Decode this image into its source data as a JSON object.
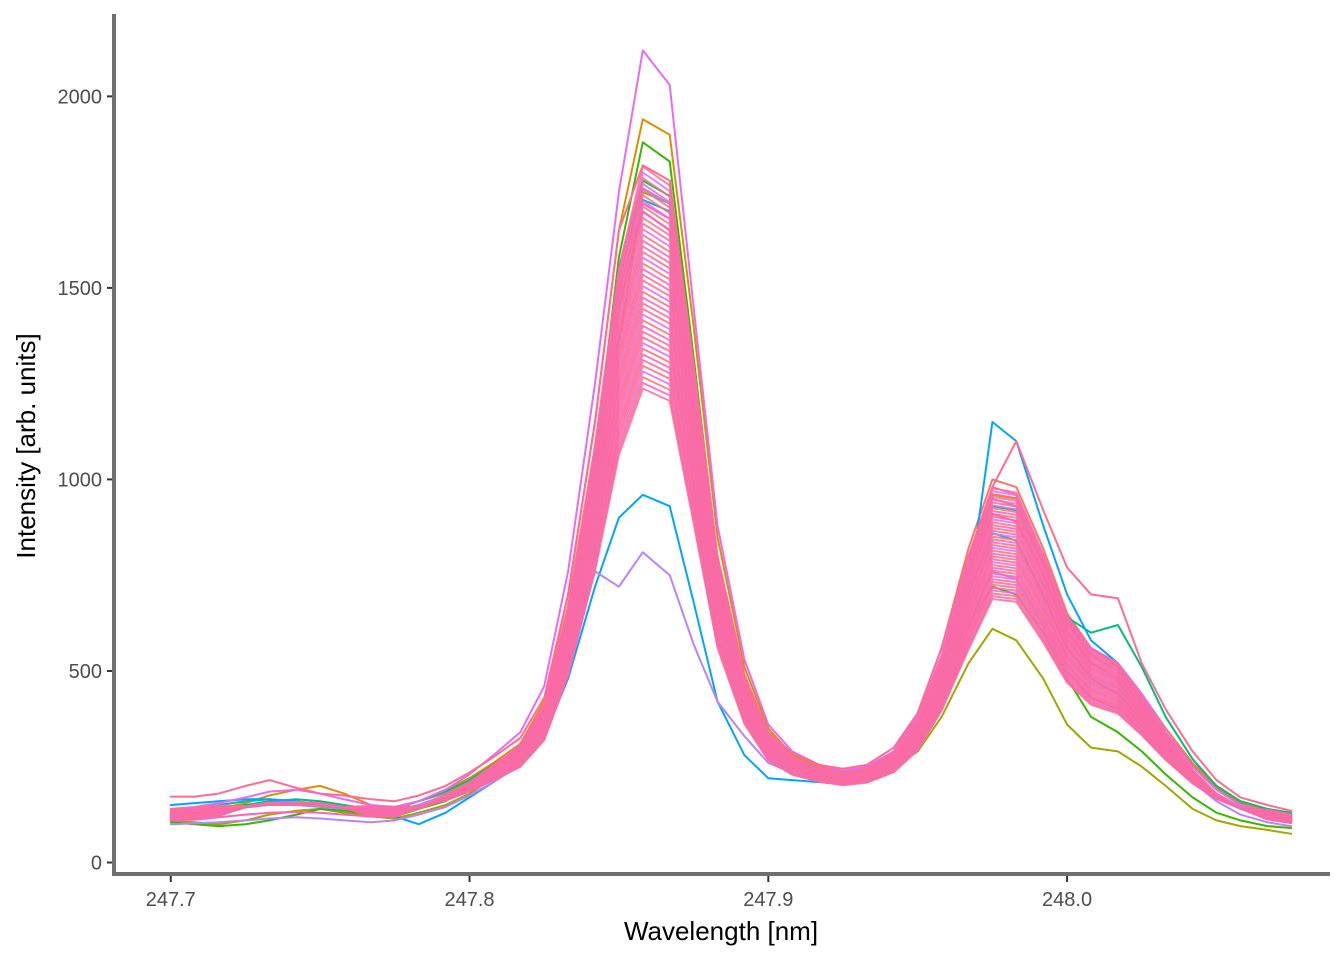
{
  "chart_data": {
    "type": "line",
    "title": "",
    "xlabel": "Wavelength [nm]",
    "ylabel": "Intensity [arb. units]",
    "xlim": [
      247.681,
      248.088
    ],
    "ylim": [
      -30,
      2215
    ],
    "grid": false,
    "legend": "none",
    "x_ticks": [
      {
        "value": 247.7,
        "label": "247.7"
      },
      {
        "value": 247.8,
        "label": "247.8"
      },
      {
        "value": 247.9,
        "label": "247.9"
      },
      {
        "value": 248.0,
        "label": "248.0"
      }
    ],
    "y_ticks": [
      {
        "value": 0,
        "label": "0"
      },
      {
        "value": 500,
        "label": "500"
      },
      {
        "value": 1000,
        "label": "1000"
      },
      {
        "value": 1500,
        "label": "1500"
      },
      {
        "value": 2000,
        "label": "2000"
      }
    ],
    "x": [
      247.7,
      247.708,
      247.716,
      247.725,
      247.733,
      247.742,
      247.75,
      247.758,
      247.767,
      247.775,
      247.783,
      247.792,
      247.8,
      247.808,
      247.817,
      247.825,
      247.833,
      247.842,
      247.85,
      247.858,
      247.867,
      247.875,
      247.883,
      247.892,
      247.9,
      247.908,
      247.917,
      247.925,
      247.933,
      247.942,
      247.95,
      247.958,
      247.967,
      247.975,
      247.983,
      247.992,
      248.0,
      248.008,
      248.017,
      248.025,
      248.033,
      248.042,
      248.05,
      248.058,
      248.067,
      248.075
    ],
    "series": [
      {
        "color": "#F8766D",
        "values": [
          130,
          132,
          150,
          160,
          165,
          160,
          150,
          140,
          130,
          140,
          160,
          180,
          210,
          250,
          300,
          400,
          650,
          1000,
          1450,
          1700,
          1650,
          1200,
          750,
          480,
          340,
          280,
          250,
          240,
          250,
          290,
          390,
          560,
          820,
          1000,
          980,
          820,
          650,
          560,
          520,
          440,
          350,
          260,
          200,
          160,
          140,
          130
        ]
      },
      {
        "color": "#D89000",
        "values": [
          125,
          130,
          140,
          155,
          175,
          190,
          200,
          180,
          150,
          140,
          160,
          190,
          220,
          260,
          310,
          420,
          700,
          1150,
          1650,
          1940,
          1900,
          1400,
          850,
          510,
          350,
          280,
          250,
          235,
          245,
          290,
          380,
          540,
          780,
          960,
          950,
          800,
          640,
          560,
          510,
          430,
          340,
          255,
          195,
          155,
          140,
          125
        ]
      },
      {
        "color": "#A3A500",
        "values": [
          110,
          105,
          100,
          110,
          125,
          135,
          140,
          130,
          120,
          115,
          130,
          150,
          180,
          220,
          260,
          350,
          560,
          900,
          1350,
          1750,
          1720,
          1250,
          780,
          470,
          330,
          270,
          240,
          225,
          230,
          250,
          290,
          380,
          520,
          610,
          580,
          480,
          360,
          300,
          290,
          250,
          200,
          140,
          110,
          95,
          85,
          75
        ]
      },
      {
        "color": "#39B600",
        "values": [
          105,
          100,
          95,
          100,
          110,
          125,
          140,
          135,
          125,
          120,
          140,
          160,
          200,
          240,
          290,
          390,
          620,
          1050,
          1580,
          1880,
          1830,
          1320,
          790,
          480,
          330,
          270,
          240,
          220,
          225,
          260,
          320,
          430,
          620,
          720,
          700,
          600,
          480,
          380,
          340,
          290,
          230,
          170,
          130,
          110,
          95,
          90
        ]
      },
      {
        "color": "#00BF7D",
        "values": [
          120,
          125,
          135,
          150,
          160,
          165,
          160,
          150,
          140,
          145,
          160,
          185,
          215,
          255,
          300,
          400,
          640,
          1050,
          1550,
          1780,
          1740,
          1260,
          760,
          460,
          320,
          265,
          240,
          230,
          240,
          280,
          370,
          520,
          760,
          930,
          920,
          780,
          640,
          600,
          620,
          510,
          380,
          270,
          200,
          160,
          140,
          130
        ]
      },
      {
        "color": "#00BFC4",
        "values": [
          135,
          140,
          150,
          160,
          165,
          160,
          150,
          145,
          140,
          135,
          150,
          175,
          205,
          245,
          290,
          380,
          600,
          980,
          1480,
          1730,
          1700,
          1230,
          740,
          440,
          300,
          250,
          225,
          210,
          220,
          260,
          340,
          480,
          700,
          860,
          840,
          700,
          560,
          480,
          440,
          380,
          300,
          220,
          170,
          140,
          125,
          115
        ]
      },
      {
        "color": "#00A5FF",
        "values": [
          150,
          155,
          160,
          165,
          165,
          160,
          150,
          140,
          130,
          120,
          100,
          130,
          170,
          210,
          260,
          330,
          480,
          720,
          900,
          960,
          930,
          680,
          420,
          280,
          220,
          215,
          210,
          205,
          215,
          250,
          330,
          480,
          700,
          1150,
          1100,
          880,
          700,
          580,
          520,
          440,
          340,
          250,
          190,
          150,
          130,
          115
        ]
      },
      {
        "color": "#9590FF",
        "values": [
          125,
          128,
          135,
          145,
          150,
          150,
          145,
          140,
          135,
          135,
          150,
          175,
          205,
          245,
          295,
          390,
          630,
          1030,
          1520,
          1760,
          1720,
          1240,
          760,
          460,
          320,
          265,
          240,
          230,
          240,
          280,
          370,
          530,
          770,
          950,
          930,
          780,
          630,
          540,
          500,
          420,
          330,
          240,
          180,
          145,
          130,
          120
        ]
      },
      {
        "color": "#E76BF3",
        "values": [
          140,
          145,
          155,
          170,
          185,
          190,
          180,
          165,
          150,
          145,
          160,
          190,
          230,
          280,
          340,
          460,
          760,
          1250,
          1750,
          2120,
          2030,
          1450,
          880,
          530,
          360,
          290,
          255,
          240,
          250,
          290,
          380,
          540,
          790,
          980,
          960,
          800,
          640,
          560,
          520,
          440,
          340,
          250,
          190,
          150,
          135,
          125
        ]
      },
      {
        "color": "#B983FF",
        "values": [
          100,
          102,
          105,
          110,
          115,
          118,
          115,
          110,
          105,
          110,
          125,
          145,
          175,
          210,
          255,
          340,
          520,
          760,
          720,
          810,
          750,
          570,
          420,
          330,
          260,
          235,
          220,
          210,
          220,
          250,
          310,
          430,
          620,
          760,
          740,
          620,
          500,
          430,
          400,
          350,
          280,
          210,
          160,
          125,
          105,
          95
        ]
      },
      {
        "color": "#FF62BC",
        "values": [
          110,
          112,
          118,
          125,
          130,
          132,
          130,
          125,
          120,
          125,
          140,
          165,
          195,
          235,
          285,
          380,
          610,
          1000,
          1480,
          1720,
          1680,
          1220,
          740,
          450,
          315,
          260,
          235,
          225,
          235,
          275,
          360,
          510,
          740,
          910,
          890,
          750,
          600,
          520,
          480,
          410,
          320,
          235,
          175,
          140,
          125,
          115
        ]
      },
      {
        "color": "#FF6C91",
        "values": [
          172,
          172,
          180,
          200,
          215,
          195,
          180,
          175,
          165,
          160,
          175,
          200,
          235,
          275,
          325,
          430,
          700,
          1150,
          1650,
          1820,
          1780,
          1300,
          800,
          490,
          340,
          285,
          255,
          245,
          255,
          300,
          390,
          560,
          800,
          980,
          1100,
          920,
          770,
          700,
          690,
          520,
          400,
          290,
          215,
          170,
          150,
          135
        ]
      }
    ]
  }
}
